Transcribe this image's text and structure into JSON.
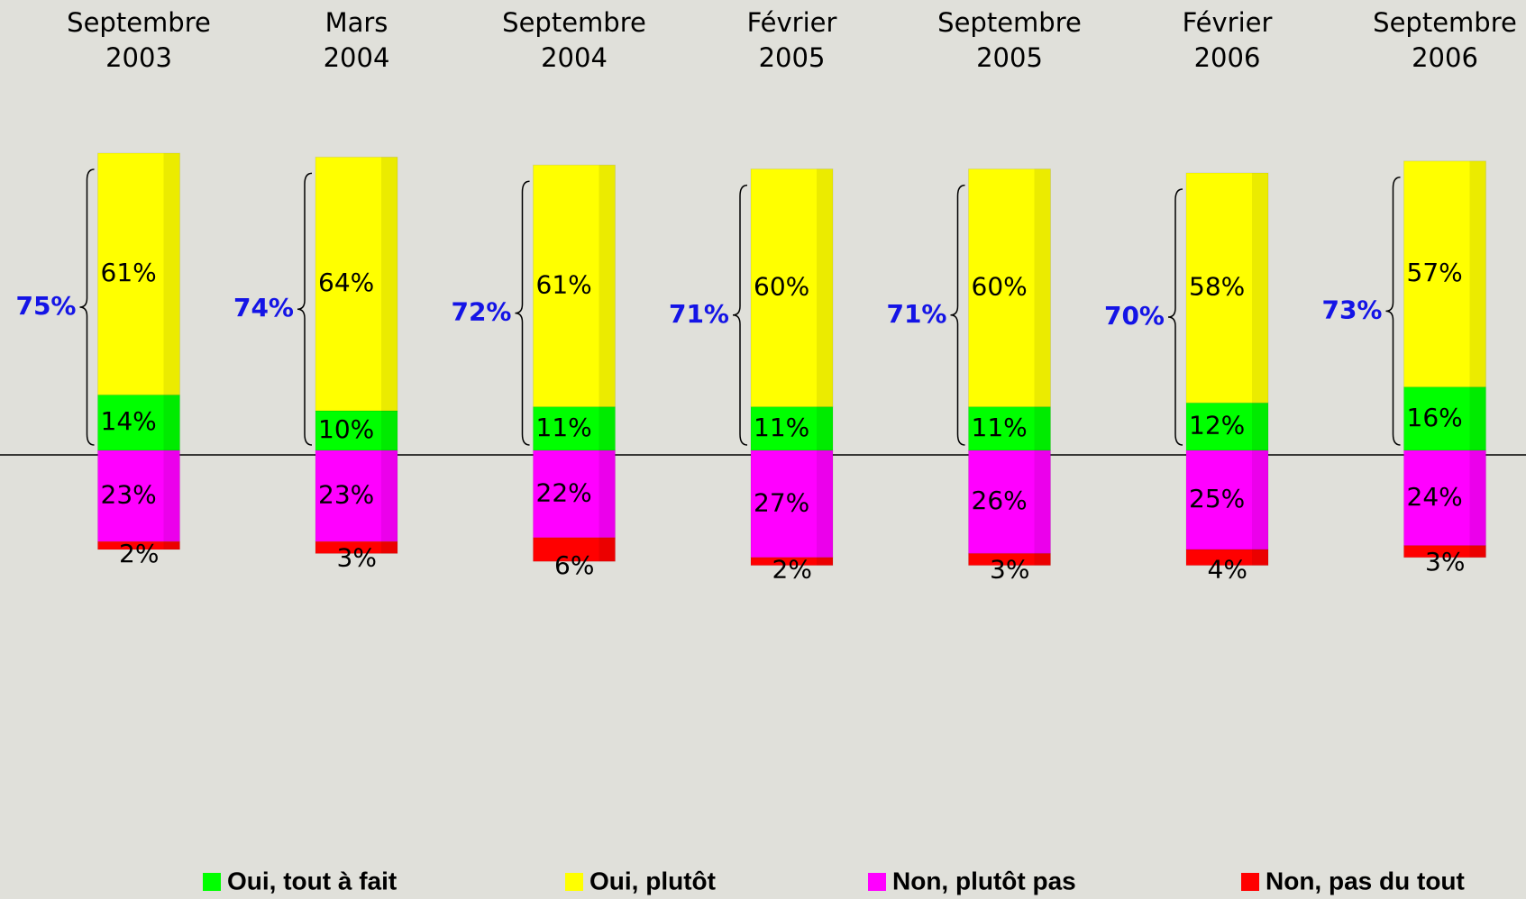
{
  "chart_data": {
    "type": "diverging-stacked-bar",
    "categories": [
      "Septembre 2003",
      "Mars 2004",
      "Septembre 2004",
      "Février 2005",
      "Septembre 2005",
      "Février 2006",
      "Septembre 2006"
    ],
    "series": [
      {
        "name": "Oui, tout à fait",
        "color": "#00ff00",
        "direction": "up",
        "values": [
          14,
          10,
          11,
          11,
          11,
          12,
          16
        ],
        "value_labels": [
          "14%",
          "10%",
          "11%",
          "11%",
          "11%",
          "12%",
          "16%"
        ]
      },
      {
        "name": "Oui, plutôt",
        "color": "#ffff00",
        "direction": "up",
        "values": [
          61,
          64,
          61,
          60,
          60,
          58,
          57
        ],
        "value_labels": [
          "61%",
          "64%",
          "61%",
          "60%",
          "60%",
          "58%",
          "57%"
        ]
      },
      {
        "name": "Non, plutôt pas",
        "color": "#ff00ff",
        "direction": "down",
        "values": [
          23,
          23,
          22,
          27,
          26,
          25,
          24
        ],
        "value_labels": [
          "23%",
          "23%",
          "22%",
          "27%",
          "26%",
          "25%",
          "24%"
        ]
      },
      {
        "name": "Non, pas du tout",
        "color": "#ff0000",
        "direction": "down",
        "values": [
          2,
          3,
          6,
          2,
          3,
          4,
          3
        ],
        "value_labels": [
          "2%",
          "3%",
          "6%",
          "2%",
          "3%",
          "4%",
          "3%"
        ]
      }
    ],
    "totals": {
      "values": [
        75,
        74,
        72,
        71,
        71,
        70,
        73
      ],
      "value_labels": [
        "75%",
        "74%",
        "72%",
        "71%",
        "71%",
        "70%",
        "73%"
      ],
      "color": "#1414e6"
    }
  }
}
